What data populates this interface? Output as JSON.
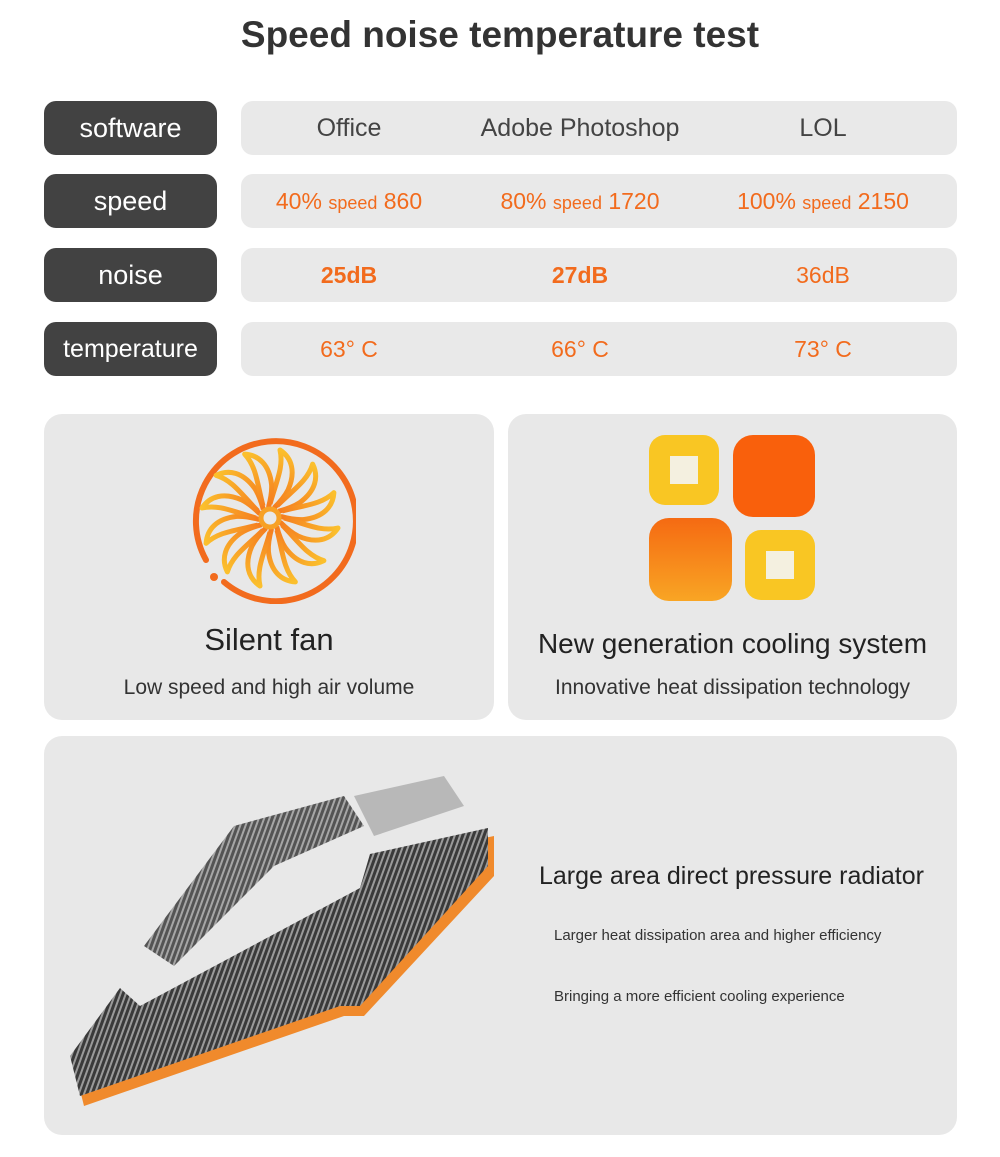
{
  "title": "Speed noise temperature test",
  "table": {
    "software": {
      "label": "software",
      "values": [
        "Office",
        "Adobe Photoshop",
        "LOL"
      ]
    },
    "speed": {
      "label": "speed",
      "values": [
        {
          "percent": "40%",
          "word": "speed",
          "rpm": "860"
        },
        {
          "percent": "80%",
          "word": "speed",
          "rpm": "1720"
        },
        {
          "percent": "100%",
          "word": "speed",
          "rpm": "2150"
        }
      ]
    },
    "noise": {
      "label": "noise",
      "values": [
        "25dB",
        "27dB",
        "36dB"
      ]
    },
    "temperature": {
      "label": "temperature",
      "values": [
        "63° C",
        "66° C",
        "73° C"
      ]
    }
  },
  "features": [
    {
      "icon": "fan-icon",
      "title": "Silent fan",
      "subtitle": "Low speed and high air volume"
    },
    {
      "icon": "cooling-squares-icon",
      "title": "New generation cooling system",
      "subtitle": "Innovative heat dissipation technology"
    }
  ],
  "radiator": {
    "title": "Large area direct pressure radiator",
    "lines": [
      "Larger heat dissipation area and higher efficiency",
      "Bringing a more efficient cooling experience"
    ]
  },
  "colors": {
    "accent": "#f26b1d",
    "yellow": "#f9c623",
    "label_bg": "#424242",
    "cell_bg": "#e9e9e9"
  }
}
